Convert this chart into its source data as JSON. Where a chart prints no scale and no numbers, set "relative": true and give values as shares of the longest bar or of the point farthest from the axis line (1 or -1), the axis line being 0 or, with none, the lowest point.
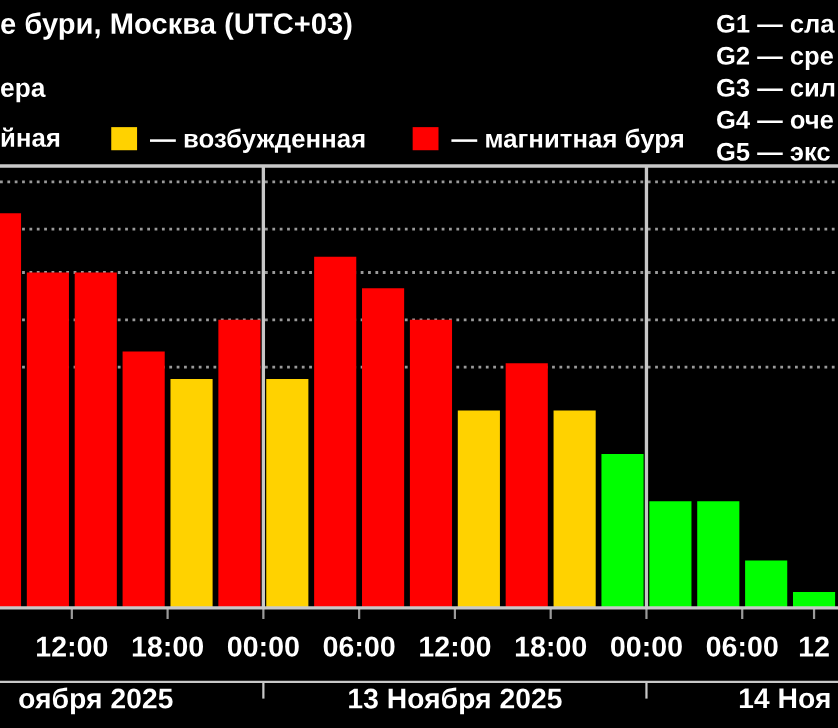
{
  "chart_data": {
    "type": "bar",
    "title": "е бури, Москва (UTC+03)",
    "subtitle": "ера",
    "annotations": [
      "йная",
      "G1 — сла",
      "G2 — сре",
      "G3 — сил",
      "G4 — оче",
      "G5 — экс"
    ],
    "relative": true,
    "x": [
      "2025-11-12T07:30",
      "2025-11-12T10:30",
      "2025-11-12T13:30",
      "2025-11-12T16:30",
      "2025-11-12T19:30",
      "2025-11-12T22:30",
      "2025-11-13T01:30",
      "2025-11-13T04:30",
      "2025-11-13T07:30",
      "2025-11-13T10:30",
      "2025-11-13T13:30",
      "2025-11-13T16:30",
      "2025-11-13T19:30",
      "2025-11-13T22:30",
      "2025-11-14T01:30",
      "2025-11-14T04:30",
      "2025-11-14T07:30",
      "2025-11-14T10:30"
    ],
    "series": [
      {
        "color": "#00ff00",
        "values": [
          null,
          null,
          null,
          null,
          null,
          null,
          null,
          null,
          null,
          null,
          null,
          null,
          null,
          0.39,
          0.27,
          0.27,
          0.12,
          0.04
        ]
      },
      {
        "name": "— возбужденная",
        "color": "#ffd200",
        "values": [
          null,
          null,
          null,
          null,
          0.58,
          null,
          0.58,
          null,
          null,
          null,
          0.5,
          null,
          0.5,
          null,
          null,
          null,
          null,
          null
        ]
      },
      {
        "name": "— магнитная буря",
        "color": "#ff0000",
        "values": [
          1,
          0.85,
          0.85,
          0.65,
          null,
          0.73,
          null,
          0.89,
          0.81,
          0.73,
          null,
          0.62,
          null,
          null,
          null,
          null,
          null,
          null
        ]
      }
    ],
    "xlim": [
      "2025-11-12T07:30",
      "2025-11-14T12:00"
    ],
    "xticks": [
      {
        "value": "2025-11-12T12:00",
        "label": "12:00"
      },
      {
        "value": "2025-11-12T18:00",
        "label": "18:00"
      },
      {
        "value": "2025-11-13T00:00",
        "label": "00:00"
      },
      {
        "value": "2025-11-13T06:00",
        "label": "06:00"
      },
      {
        "value": "2025-11-13T12:00",
        "label": "12:00"
      },
      {
        "value": "2025-11-13T18:00",
        "label": "18:00"
      },
      {
        "value": "2025-11-14T00:00",
        "label": "00:00"
      },
      {
        "value": "2025-11-14T06:00",
        "label": "06:00"
      },
      {
        "value": "2025-11-14T10:30",
        "label": "12"
      }
    ],
    "x2lim": [
      "2025-11-12T07:30",
      "2025-11-14T12:00"
    ],
    "x2ticks": [
      {
        "value": "2025-11-12T13:30",
        "label": "оября 2025"
      },
      {
        "value": "2025-11-13T00:00",
        "label": null
      },
      {
        "value": "2025-11-13T12:00",
        "label": "13 Ноября 2025"
      },
      {
        "value": "2025-11-14T00:00",
        "label": null
      },
      {
        "value": "2025-11-14T08:40",
        "label": "14 Ноя"
      }
    ],
    "ref_lines": [
      {
        "axis": "y",
        "value": 1.08,
        "color": "#9a9a9a",
        "line_style": "dotted"
      },
      {
        "axis": "y",
        "value": 0.96,
        "color": "#9a9a9a",
        "line_style": "dotted"
      },
      {
        "axis": "y",
        "value": 0.85,
        "color": "#9a9a9a",
        "line_style": "dotted"
      },
      {
        "axis": "y",
        "value": 0.73,
        "color": "#9a9a9a",
        "line_style": "dotted"
      },
      {
        "axis": "y",
        "value": 0.61,
        "color": "#9a9a9a",
        "line_style": "dotted"
      },
      {
        "axis": "x",
        "value": "2025-11-13T00:00",
        "color": "#c8c8c8",
        "line_style": "solid"
      },
      {
        "axis": "x",
        "value": "2025-11-14T00:00",
        "color": "#c8c8c8",
        "line_style": "solid"
      }
    ],
    "legend": "top"
  }
}
